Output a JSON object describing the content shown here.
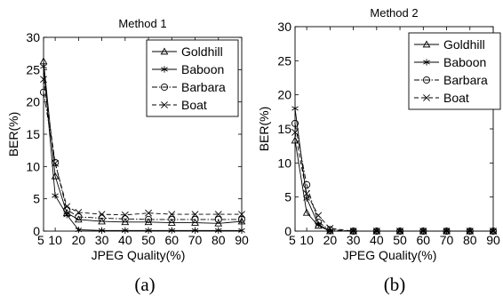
{
  "chart_data": [
    {
      "type": "line",
      "title": "Method 1",
      "xlabel": "JPEG Quality(%)",
      "ylabel": "BER(%)",
      "caption": "(a)",
      "xlim": [
        5,
        90
      ],
      "ylim": [
        0,
        30
      ],
      "xticks": [
        5,
        10,
        20,
        30,
        40,
        50,
        60,
        70,
        80,
        90
      ],
      "yticks": [
        0,
        5,
        10,
        15,
        20,
        25,
        30
      ],
      "legend_position": "top-right",
      "series": [
        {
          "name": "Goldhill",
          "marker": "triangle",
          "dash": "solid",
          "x": [
            5,
            10,
            15,
            20,
            30,
            40,
            50,
            60,
            70,
            80,
            90
          ],
          "y": [
            26.3,
            8.5,
            2.8,
            1.8,
            1.5,
            1.4,
            1.4,
            1.3,
            1.3,
            1.2,
            1.5
          ]
        },
        {
          "name": "Baboon",
          "marker": "asterisk",
          "dash": "solid",
          "x": [
            5,
            10,
            15,
            20,
            30,
            40,
            50,
            60,
            70,
            80,
            90
          ],
          "y": [
            25.5,
            5.5,
            2.5,
            0.2,
            0.1,
            0.1,
            0.1,
            0.1,
            0.1,
            0.1,
            0.1
          ]
        },
        {
          "name": "Barbara",
          "marker": "circle",
          "dash": "dashdot",
          "x": [
            5,
            10,
            15,
            20,
            30,
            40,
            50,
            60,
            70,
            80,
            90
          ],
          "y": [
            21.5,
            10.6,
            3.3,
            2.2,
            2.0,
            1.9,
            1.8,
            1.8,
            1.8,
            1.8,
            1.8
          ]
        },
        {
          "name": "Boat",
          "marker": "x",
          "dash": "dashed",
          "x": [
            5,
            10,
            15,
            20,
            30,
            40,
            50,
            60,
            70,
            80,
            90
          ],
          "y": [
            23.5,
            10.5,
            3.8,
            2.9,
            2.6,
            2.5,
            2.8,
            2.6,
            2.6,
            2.6,
            2.6
          ]
        }
      ]
    },
    {
      "type": "line",
      "title": "Method 2",
      "xlabel": "JPEG Quality(%)",
      "ylabel": "BER(%)",
      "caption": "(b)",
      "xlim": [
        5,
        90
      ],
      "ylim": [
        0,
        30
      ],
      "xticks": [
        5,
        10,
        20,
        30,
        40,
        50,
        60,
        70,
        80,
        90
      ],
      "yticks": [
        0,
        5,
        10,
        15,
        20,
        25,
        30
      ],
      "legend_position": "top-right",
      "series": [
        {
          "name": "Goldhill",
          "marker": "triangle",
          "dash": "solid",
          "x": [
            5,
            10,
            15,
            20,
            30,
            40,
            50,
            60,
            70,
            80,
            90
          ],
          "y": [
            13.3,
            2.7,
            0.8,
            0,
            0,
            0,
            0,
            0,
            0,
            0,
            0
          ]
        },
        {
          "name": "Baboon",
          "marker": "asterisk",
          "dash": "solid",
          "x": [
            5,
            10,
            15,
            20,
            30,
            40,
            50,
            60,
            70,
            80,
            90
          ],
          "y": [
            18.0,
            4.8,
            1.0,
            0,
            0,
            0,
            0,
            0,
            0,
            0,
            0
          ]
        },
        {
          "name": "Barbara",
          "marker": "circle",
          "dash": "dashdot",
          "x": [
            5,
            10,
            15,
            20,
            30,
            40,
            50,
            60,
            70,
            80,
            90
          ],
          "y": [
            15.8,
            6.8,
            1.3,
            0.2,
            0,
            0,
            0,
            0,
            0,
            0,
            0
          ]
        },
        {
          "name": "Boat",
          "marker": "x",
          "dash": "dashed",
          "x": [
            5,
            10,
            15,
            20,
            30,
            40,
            50,
            60,
            70,
            80,
            90
          ],
          "y": [
            14.5,
            5.5,
            2.3,
            0.4,
            0,
            0,
            0,
            0,
            0,
            0,
            0
          ]
        }
      ]
    }
  ]
}
